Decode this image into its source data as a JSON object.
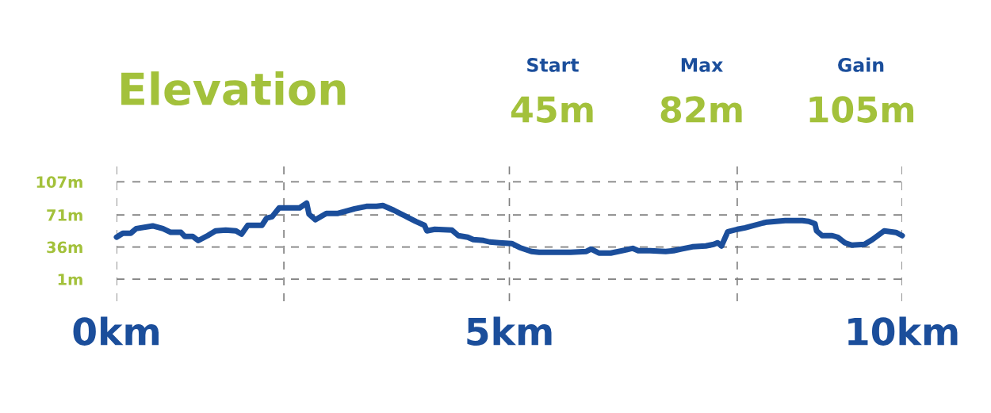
{
  "chart_data": {
    "type": "line",
    "title": "Elevation",
    "annotations": [
      "Start",
      "45m",
      "Max",
      "82m",
      "Gain",
      "105m"
    ],
    "x": [
      0.0,
      0.08,
      0.18,
      0.25,
      0.46,
      0.59,
      0.69,
      0.82,
      0.87,
      0.97,
      1.04,
      1.16,
      1.26,
      1.39,
      1.52,
      1.59,
      1.67,
      1.85,
      1.91,
      1.98,
      2.07,
      2.33,
      2.42,
      2.45,
      2.53,
      2.67,
      2.81,
      3.03,
      3.18,
      3.31,
      3.39,
      3.53,
      3.61,
      3.71,
      3.81,
      3.92,
      3.95,
      4.05,
      4.27,
      4.35,
      4.47,
      4.54,
      4.67,
      4.75,
      4.87,
      5.03,
      5.13,
      5.28,
      5.38,
      5.78,
      5.98,
      6.04,
      6.14,
      6.29,
      6.49,
      6.57,
      6.64,
      6.79,
      6.99,
      7.09,
      7.19,
      7.33,
      7.5,
      7.6,
      7.65,
      7.7,
      7.78,
      7.9,
      8.0,
      8.23,
      8.28,
      8.51,
      8.73,
      8.81,
      8.89,
      8.91,
      8.98,
      9.11,
      9.18,
      9.27,
      9.36,
      9.52,
      9.62,
      9.77,
      9.92,
      10.0
    ],
    "series": [
      {
        "color": "#1b4e9b",
        "values": [
          46.7,
          51,
          51,
          56,
          59,
          56,
          52,
          52,
          47.5,
          47.5,
          43,
          48.4,
          53.6,
          54.4,
          53.6,
          50,
          59.6,
          59.6,
          67.4,
          69,
          78.6,
          78.6,
          83.8,
          71.7,
          65.7,
          72.5,
          72.5,
          77.7,
          80.3,
          80.3,
          81.2,
          76,
          72.5,
          68.2,
          63.9,
          59.6,
          53.6,
          55.3,
          54.4,
          48.4,
          46.7,
          44.1,
          43.2,
          41.5,
          40.7,
          39.8,
          35.5,
          31.2,
          30.3,
          30.3,
          31.2,
          33.8,
          29.4,
          29.4,
          32.9,
          34.6,
          32,
          32,
          31.2,
          32,
          33.8,
          36.3,
          37.2,
          38.9,
          40.7,
          37.2,
          52.7,
          55.3,
          57,
          62.2,
          63.1,
          64.8,
          64.8,
          63.9,
          61.3,
          53.6,
          48.4,
          48.4,
          46.7,
          40.7,
          38.1,
          38.9,
          44.1,
          53.6,
          51.9,
          48.4
        ]
      }
    ],
    "xlim": [
      0,
      10
    ],
    "ylim": [
      -23,
      128
    ],
    "xticks": [
      {
        "value": 0,
        "label": "0km"
      },
      {
        "value": 2.13,
        "label": null
      },
      {
        "value": 5,
        "label": "5km"
      },
      {
        "value": 7.9,
        "label": null
      },
      {
        "value": 10,
        "label": "10km"
      }
    ],
    "yticks": [
      {
        "value": 1,
        "label": "1m"
      },
      {
        "value": 36,
        "label": "36m"
      },
      {
        "value": 71,
        "label": "71m"
      },
      {
        "value": 107,
        "label": "107m"
      }
    ],
    "grid": true,
    "marker": "none",
    "line_style": "solid",
    "legend": false
  }
}
